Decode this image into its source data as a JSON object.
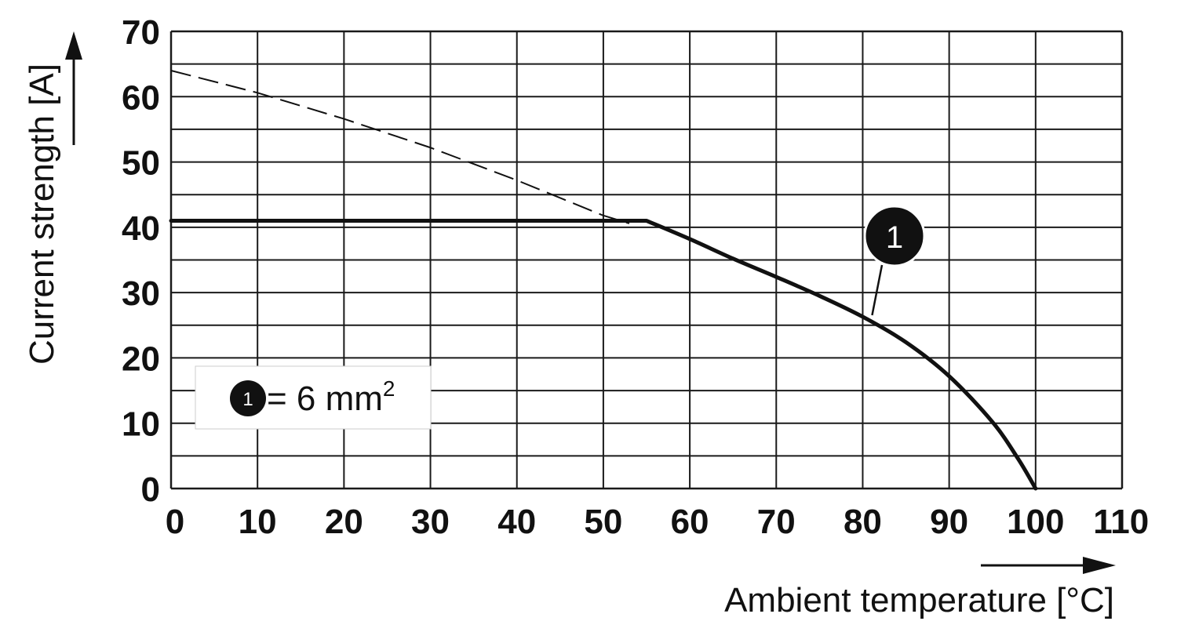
{
  "chart_data": {
    "type": "line",
    "xlabel": "Ambient temperature [°C]",
    "ylabel": "Current strength [A]",
    "xlim": [
      0,
      110
    ],
    "ylim": [
      0,
      70
    ],
    "x_ticks": [
      "0",
      "10",
      "20",
      "30",
      "40",
      "50",
      "60",
      "70",
      "80",
      "90",
      "100",
      "110"
    ],
    "y_ticks": [
      "0",
      "10",
      "20",
      "30",
      "40",
      "50",
      "60",
      "70"
    ],
    "grid": true,
    "grid_minor_y_step": 5,
    "series": [
      {
        "label_marker": "1",
        "style": "solid",
        "points": [
          [
            0,
            41
          ],
          [
            55,
            41
          ],
          [
            60,
            38.2
          ],
          [
            65,
            35.2
          ],
          [
            70,
            32.4
          ],
          [
            75,
            29.5
          ],
          [
            80,
            26.3
          ],
          [
            85,
            22.4
          ],
          [
            90,
            17.2
          ],
          [
            95,
            10.2
          ],
          [
            98,
            4.5
          ],
          [
            100,
            0
          ]
        ]
      },
      {
        "style": "dashed",
        "points": [
          [
            0,
            64
          ],
          [
            10,
            60.6
          ],
          [
            20,
            56.6
          ],
          [
            30,
            52.2
          ],
          [
            40,
            47.2
          ],
          [
            50,
            41.8
          ],
          [
            53,
            40.6
          ]
        ]
      }
    ],
    "annotation": {
      "marker": "1",
      "x": 80,
      "y": 26.3
    },
    "legend": {
      "marker": "1",
      "text": "= 6 mm",
      "sup": "2",
      "placement": "bottom-left"
    },
    "colors": {
      "line": "#111111",
      "grid": "#1a1a1a"
    }
  }
}
